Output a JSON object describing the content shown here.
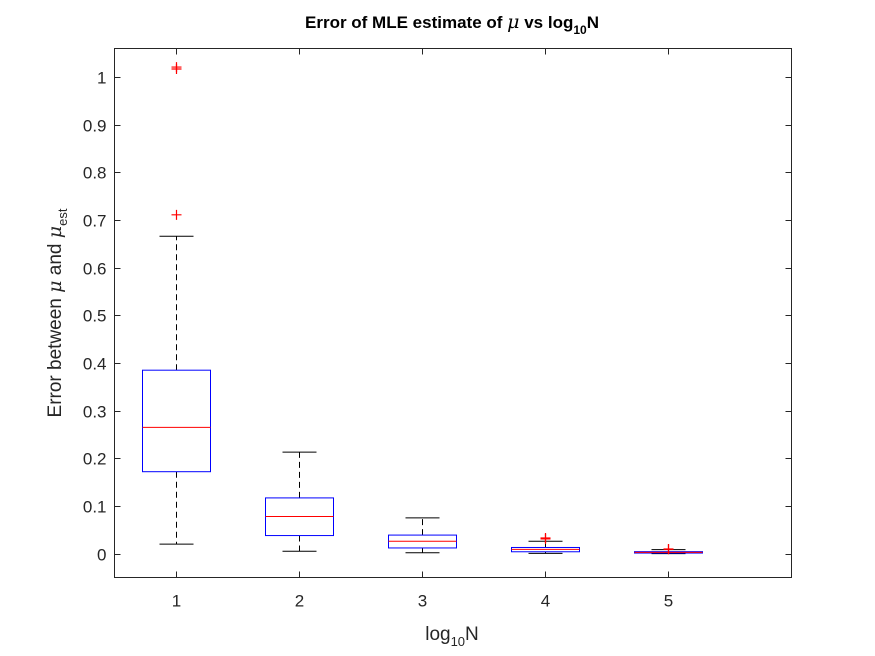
{
  "chart_data": {
    "type": "boxplot",
    "title": "Error of MLE estimate of μ vs log₁₀N",
    "xlabel": "log₁₀N",
    "ylabel": "Error between μ and μ_est",
    "categories": [
      "1",
      "2",
      "3",
      "4",
      "5"
    ],
    "ylim": [
      -0.05,
      1.06
    ],
    "yticks": [
      0,
      0.1,
      0.2,
      0.3,
      0.4,
      0.5,
      0.6,
      0.7,
      0.8,
      0.9,
      1
    ],
    "grid": false,
    "legend": "none",
    "boxes": [
      {
        "x": "1",
        "whisker_low": 0.02,
        "q1": 0.172,
        "median": 0.265,
        "q3": 0.385,
        "whisker_high": 0.666,
        "outliers": [
          0.711,
          1.017,
          1.021
        ]
      },
      {
        "x": "2",
        "whisker_low": 0.005,
        "q1": 0.038,
        "median": 0.078,
        "q3": 0.117,
        "whisker_high": 0.213,
        "outliers": []
      },
      {
        "x": "3",
        "whisker_low": 0.002,
        "q1": 0.012,
        "median": 0.026,
        "q3": 0.039,
        "whisker_high": 0.075,
        "outliers": []
      },
      {
        "x": "4",
        "whisker_low": 0.0005,
        "q1": 0.004,
        "median": 0.009,
        "q3": 0.013,
        "whisker_high": 0.026,
        "outliers": [
          0.031,
          0.033
        ]
      },
      {
        "x": "5",
        "whisker_low": 0.0002,
        "q1": 0.0013,
        "median": 0.0028,
        "q3": 0.0042,
        "whisker_high": 0.0085,
        "outliers": [
          0.0092,
          0.0098
        ]
      }
    ],
    "colors": {
      "box": "#0000ff",
      "median": "#ff0000",
      "whisker": "#000000",
      "outlier": "#ff0000",
      "axes": "#262626"
    }
  }
}
